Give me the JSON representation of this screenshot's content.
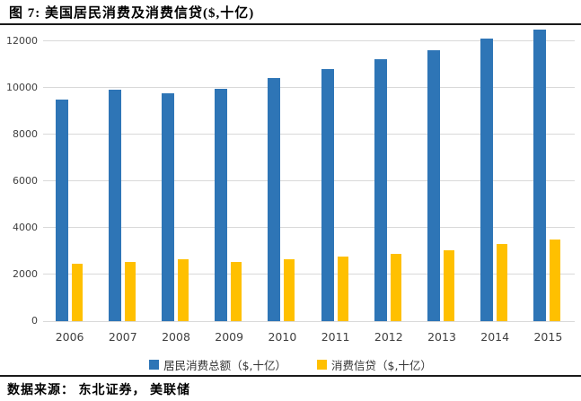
{
  "figure": {
    "title": "图  7:  美国居民消费及消费信贷($,十亿)",
    "source_note": "数据来源：  东北证券，  美联储"
  },
  "chart_data": {
    "type": "bar",
    "categories": [
      "2006",
      "2007",
      "2008",
      "2009",
      "2010",
      "2011",
      "2012",
      "2013",
      "2014",
      "2015"
    ],
    "series": [
      {
        "name": "居民消费总额（$,十亿）",
        "color": "#2E75B6",
        "values": [
          9500,
          9900,
          9750,
          9950,
          10400,
          10800,
          11200,
          11600,
          12100,
          12500
        ]
      },
      {
        "name": "消费信贷（$,十亿）",
        "color": "#FFC000",
        "values": [
          2450,
          2550,
          2650,
          2550,
          2650,
          2750,
          2900,
          3050,
          3300,
          3500
        ]
      }
    ],
    "title": "美国居民消费及消费信贷($,十亿)",
    "xlabel": "",
    "ylabel": "",
    "ylim": [
      0,
      12600
    ],
    "yticks": [
      0,
      2000,
      4000,
      6000,
      8000,
      10000,
      12000
    ],
    "grid": true,
    "legend_position": "bottom",
    "gridline_color": "#D9D9D9",
    "axis_text_color": "#404040"
  }
}
